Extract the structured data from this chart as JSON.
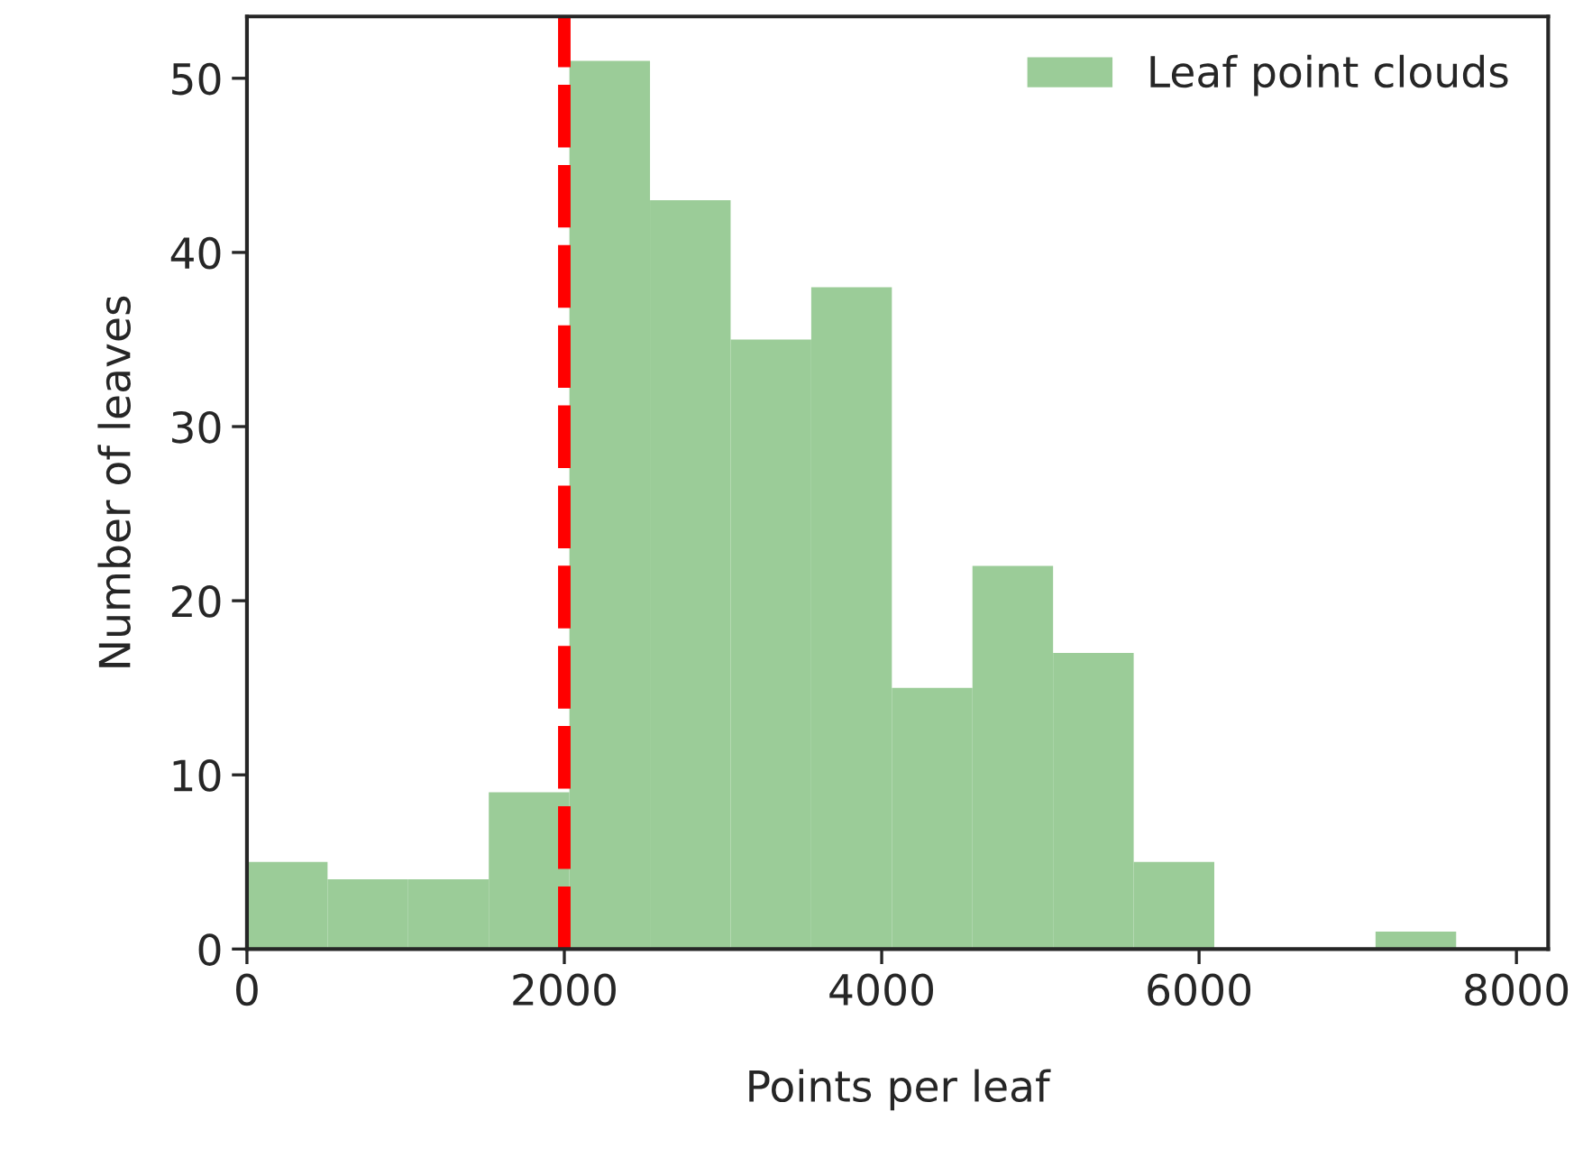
{
  "chart_data": {
    "type": "histogram",
    "xlabel": "Points per leaf",
    "ylabel": "Number of leaves",
    "bins": [
      0,
      508,
      1016,
      1524,
      2032,
      2540,
      3048,
      3556,
      4064,
      4572,
      5080,
      5588,
      6096,
      6604,
      7112,
      7620
    ],
    "series": [
      {
        "name": "Leaf point clouds",
        "color": "#9bcc98",
        "values": [
          5,
          4,
          4,
          9,
          51,
          43,
          35,
          38,
          15,
          22,
          17,
          5,
          0,
          0,
          1
        ]
      }
    ],
    "xlim": [
      0,
      8200
    ],
    "xticks": [
      0,
      2000,
      4000,
      6000,
      8000
    ],
    "ylim": [
      0,
      53.55
    ],
    "yticks": [
      0,
      10,
      20,
      30,
      40,
      50
    ],
    "ref_lines": [
      {
        "axis": "x",
        "value": 2000,
        "color": "#ff0000",
        "line_style": "dashed"
      }
    ],
    "legend": "top right",
    "grid": false
  }
}
